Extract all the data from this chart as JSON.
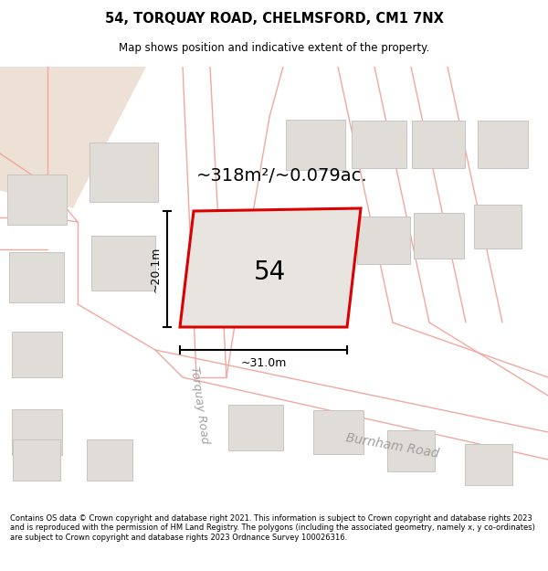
{
  "title_line1": "54, TORQUAY ROAD, CHELMSFORD, CM1 7NX",
  "title_line2": "Map shows position and indicative extent of the property.",
  "footer_text": "Contains OS data © Crown copyright and database right 2021. This information is subject to Crown copyright and database rights 2023 and is reproduced with the permission of HM Land Registry. The polygons (including the associated geometry, namely x, y co-ordinates) are subject to Crown copyright and database rights 2023 Ordnance Survey 100026316.",
  "area_text": "~318m²/~0.079ac.",
  "label_number": "54",
  "dim_width": "~31.0m",
  "dim_height": "~20.1m",
  "road_label1": "Torquay Road",
  "road_label2": "Burnham Road",
  "map_bg": "#ffffff",
  "title_bg": "#ffffff",
  "footer_bg": "#ffffff",
  "top_left_bg": "#ede0d4",
  "building_fill": "#e0dcd8",
  "building_edge": "#c8c4c0",
  "plot_fill": "#e8e4e0",
  "plot_edge": "#dd0000",
  "road_line": "#f0a8a0",
  "road_line2": "#e8b0a8"
}
